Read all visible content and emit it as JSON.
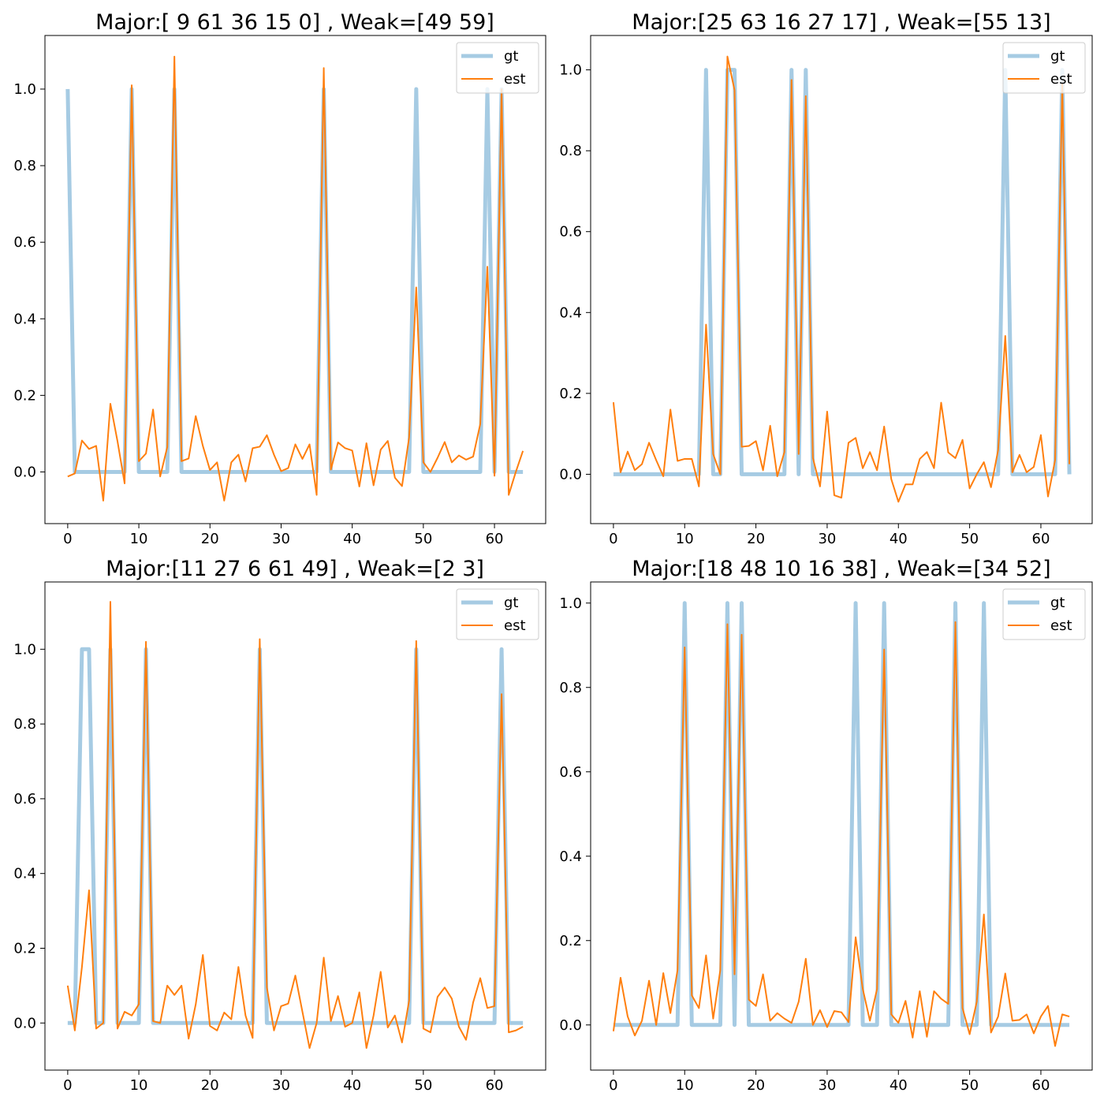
{
  "chart_data": [
    {
      "type": "line",
      "title": "Major:[ 9 61 36 15  0] , Weak=[49 59]",
      "xlabel": "",
      "ylabel": "",
      "xlim": [
        -3.2,
        67.2
      ],
      "ylim": [
        -0.135,
        1.14
      ],
      "xticks": [
        0,
        10,
        20,
        30,
        40,
        50,
        60
      ],
      "xtick_labels": [
        "0",
        "10",
        "20",
        "30",
        "40",
        "50",
        "60"
      ],
      "yticks": [
        0.0,
        0.2,
        0.4,
        0.6,
        0.8,
        1.0
      ],
      "ytick_labels": [
        "0.0",
        "0.2",
        "0.4",
        "0.6",
        "0.8",
        "1.0"
      ],
      "legend": "top-right",
      "x": [
        0,
        1,
        2,
        3,
        4,
        5,
        6,
        7,
        8,
        9,
        10,
        11,
        12,
        13,
        14,
        15,
        16,
        17,
        18,
        19,
        20,
        21,
        22,
        23,
        24,
        25,
        26,
        27,
        28,
        29,
        30,
        31,
        32,
        33,
        34,
        35,
        36,
        37,
        38,
        39,
        40,
        41,
        42,
        43,
        44,
        45,
        46,
        47,
        48,
        49,
        50,
        51,
        52,
        53,
        54,
        55,
        56,
        57,
        58,
        59,
        60,
        61,
        62,
        63,
        64
      ],
      "series": [
        {
          "name": "gt",
          "color": "#a6cbe3",
          "values": [
            1,
            0,
            0,
            0,
            0,
            0,
            0,
            0,
            0,
            1,
            0,
            0,
            0,
            0,
            0,
            1,
            0,
            0,
            0,
            0,
            0,
            0,
            0,
            0,
            0,
            0,
            0,
            0,
            0,
            0,
            0,
            0,
            0,
            0,
            0,
            0,
            1,
            0,
            0,
            0,
            0,
            0,
            0,
            0,
            0,
            0,
            0,
            0,
            0,
            1,
            0,
            0,
            0,
            0,
            0,
            0,
            0,
            0,
            0,
            1,
            0,
            1,
            0,
            0,
            0
          ]
        },
        {
          "name": "est",
          "color": "#ff7f0e",
          "values": [
            -0.012,
            -0.004,
            0.082,
            0.06,
            0.068,
            -0.075,
            0.178,
            0.08,
            -0.03,
            1.01,
            0.028,
            0.048,
            0.163,
            -0.012,
            0.065,
            1.085,
            0.028,
            0.035,
            0.146,
            0.068,
            0.005,
            0.025,
            -0.075,
            0.025,
            0.045,
            -0.025,
            0.062,
            0.066,
            0.096,
            0.045,
            0.002,
            0.01,
            0.072,
            0.034,
            0.072,
            -0.06,
            1.055,
            0.006,
            0.077,
            0.062,
            0.056,
            -0.038,
            0.075,
            -0.035,
            0.058,
            0.081,
            -0.015,
            -0.037,
            0.09,
            0.482,
            0.025,
            0.0,
            0.037,
            0.078,
            0.025,
            0.043,
            0.032,
            0.04,
            0.125,
            0.536,
            -0.01,
            1.0,
            -0.06,
            0.0,
            0.055
          ]
        }
      ]
    },
    {
      "type": "line",
      "title": "Major:[25 63 16 27 17] , Weak=[55 13]",
      "xlabel": "",
      "ylabel": "",
      "xlim": [
        -3.2,
        67.2
      ],
      "ylim": [
        -0.122,
        1.085
      ],
      "xticks": [
        0,
        10,
        20,
        30,
        40,
        50,
        60
      ],
      "xtick_labels": [
        "0",
        "10",
        "20",
        "30",
        "40",
        "50",
        "60"
      ],
      "yticks": [
        0.0,
        0.2,
        0.4,
        0.6,
        0.8,
        1.0
      ],
      "ytick_labels": [
        "0.0",
        "0.2",
        "0.4",
        "0.6",
        "0.8",
        "1.0"
      ],
      "legend": "top-right",
      "x": [
        0,
        1,
        2,
        3,
        4,
        5,
        6,
        7,
        8,
        9,
        10,
        11,
        12,
        13,
        14,
        15,
        16,
        17,
        18,
        19,
        20,
        21,
        22,
        23,
        24,
        25,
        26,
        27,
        28,
        29,
        30,
        31,
        32,
        33,
        34,
        35,
        36,
        37,
        38,
        39,
        40,
        41,
        42,
        43,
        44,
        45,
        46,
        47,
        48,
        49,
        50,
        51,
        52,
        53,
        54,
        55,
        56,
        57,
        58,
        59,
        60,
        61,
        62,
        63,
        64
      ],
      "series": [
        {
          "name": "gt",
          "color": "#a6cbe3",
          "values": [
            0,
            0,
            0,
            0,
            0,
            0,
            0,
            0,
            0,
            0,
            0,
            0,
            0,
            1,
            0,
            0,
            1,
            1,
            0,
            0,
            0,
            0,
            0,
            0,
            0,
            1,
            0,
            1,
            0,
            0,
            0,
            0,
            0,
            0,
            0,
            0,
            0,
            0,
            0,
            0,
            0,
            0,
            0,
            0,
            0,
            0,
            0,
            0,
            0,
            0,
            0,
            0,
            0,
            0,
            0,
            1,
            0,
            0,
            0,
            0,
            0,
            0,
            0,
            1,
            0
          ]
        },
        {
          "name": "est",
          "color": "#ff7f0e",
          "values": [
            0.178,
            0.005,
            0.056,
            0.01,
            0.025,
            0.078,
            0.035,
            -0.005,
            0.16,
            0.033,
            0.038,
            0.038,
            -0.03,
            0.37,
            0.05,
            0.0,
            1.033,
            0.95,
            0.068,
            0.07,
            0.082,
            0.01,
            0.12,
            -0.005,
            0.055,
            0.975,
            0.05,
            0.935,
            0.04,
            -0.03,
            0.155,
            -0.052,
            -0.058,
            0.078,
            0.09,
            0.015,
            0.055,
            0.01,
            0.118,
            -0.012,
            -0.068,
            -0.025,
            -0.025,
            0.038,
            0.055,
            0.015,
            0.177,
            0.054,
            0.04,
            0.085,
            -0.035,
            0.0,
            0.03,
            -0.032,
            0.06,
            0.342,
            0.005,
            0.048,
            0.005,
            0.018,
            0.097,
            -0.055,
            0.035,
            0.965,
            0.025
          ]
        }
      ]
    },
    {
      "type": "line",
      "title": "Major:[11 27  6 61 49] , Weak=[2 3]",
      "xlabel": "",
      "ylabel": "",
      "xlim": [
        -3.2,
        67.2
      ],
      "ylim": [
        -0.126,
        1.18
      ],
      "xticks": [
        0,
        10,
        20,
        30,
        40,
        50,
        60
      ],
      "xtick_labels": [
        "0",
        "10",
        "20",
        "30",
        "40",
        "50",
        "60"
      ],
      "yticks": [
        0.0,
        0.2,
        0.4,
        0.6,
        0.8,
        1.0
      ],
      "ytick_labels": [
        "0.0",
        "0.2",
        "0.4",
        "0.6",
        "0.8",
        "1.0"
      ],
      "legend": "top-right",
      "x": [
        0,
        1,
        2,
        3,
        4,
        5,
        6,
        7,
        8,
        9,
        10,
        11,
        12,
        13,
        14,
        15,
        16,
        17,
        18,
        19,
        20,
        21,
        22,
        23,
        24,
        25,
        26,
        27,
        28,
        29,
        30,
        31,
        32,
        33,
        34,
        35,
        36,
        37,
        38,
        39,
        40,
        41,
        42,
        43,
        44,
        45,
        46,
        47,
        48,
        49,
        50,
        51,
        52,
        53,
        54,
        55,
        56,
        57,
        58,
        59,
        60,
        61,
        62,
        63,
        64
      ],
      "series": [
        {
          "name": "gt",
          "color": "#a6cbe3",
          "values": [
            0,
            0,
            1,
            1,
            0,
            0,
            1,
            0,
            0,
            0,
            0,
            1,
            0,
            0,
            0,
            0,
            0,
            0,
            0,
            0,
            0,
            0,
            0,
            0,
            0,
            0,
            0,
            1,
            0,
            0,
            0,
            0,
            0,
            0,
            0,
            0,
            0,
            0,
            0,
            0,
            0,
            0,
            0,
            0,
            0,
            0,
            0,
            0,
            0,
            1,
            0,
            0,
            0,
            0,
            0,
            0,
            0,
            0,
            0,
            0,
            0,
            1,
            0,
            0,
            0
          ]
        },
        {
          "name": "est",
          "color": "#ff7f0e",
          "values": [
            0.1,
            -0.02,
            0.15,
            0.355,
            -0.015,
            0.0,
            1.127,
            -0.015,
            0.03,
            0.02,
            0.05,
            1.02,
            0.005,
            0.0,
            0.1,
            0.075,
            0.1,
            -0.042,
            0.05,
            0.182,
            -0.008,
            -0.02,
            0.028,
            0.01,
            0.15,
            0.02,
            -0.04,
            1.027,
            0.095,
            -0.02,
            0.045,
            0.052,
            0.127,
            0.03,
            -0.067,
            0.0,
            0.175,
            0.005,
            0.072,
            -0.01,
            0.0,
            0.082,
            -0.067,
            0.02,
            0.137,
            -0.012,
            0.02,
            -0.052,
            0.06,
            1.022,
            -0.015,
            -0.025,
            0.07,
            0.095,
            0.065,
            -0.01,
            -0.045,
            0.055,
            0.12,
            0.04,
            0.045,
            0.88,
            -0.025,
            -0.02,
            -0.01
          ]
        }
      ]
    },
    {
      "type": "line",
      "title": "Major:[18 48 10 16 38] , Weak=[34 52]",
      "xlabel": "",
      "ylabel": "",
      "xlim": [
        -3.2,
        67.2
      ],
      "ylim": [
        -0.107,
        1.05
      ],
      "xticks": [
        0,
        10,
        20,
        30,
        40,
        50,
        60
      ],
      "xtick_labels": [
        "0",
        "10",
        "20",
        "30",
        "40",
        "50",
        "60"
      ],
      "yticks": [
        0.0,
        0.2,
        0.4,
        0.6,
        0.8,
        1.0
      ],
      "ytick_labels": [
        "0.0",
        "0.2",
        "0.4",
        "0.6",
        "0.8",
        "1.0"
      ],
      "legend": "top-right",
      "x": [
        0,
        1,
        2,
        3,
        4,
        5,
        6,
        7,
        8,
        9,
        10,
        11,
        12,
        13,
        14,
        15,
        16,
        17,
        18,
        19,
        20,
        21,
        22,
        23,
        24,
        25,
        26,
        27,
        28,
        29,
        30,
        31,
        32,
        33,
        34,
        35,
        36,
        37,
        38,
        39,
        40,
        41,
        42,
        43,
        44,
        45,
        46,
        47,
        48,
        49,
        50,
        51,
        52,
        53,
        54,
        55,
        56,
        57,
        58,
        59,
        60,
        61,
        62,
        63,
        64
      ],
      "series": [
        {
          "name": "gt",
          "color": "#a6cbe3",
          "values": [
            0,
            0,
            0,
            0,
            0,
            0,
            0,
            0,
            0,
            0,
            1,
            0,
            0,
            0,
            0,
            0,
            1,
            0,
            1,
            0,
            0,
            0,
            0,
            0,
            0,
            0,
            0,
            0,
            0,
            0,
            0,
            0,
            0,
            0,
            1,
            0,
            0,
            0,
            1,
            0,
            0,
            0,
            0,
            0,
            0,
            0,
            0,
            0,
            1,
            0,
            0,
            0,
            1,
            0,
            0,
            0,
            0,
            0,
            0,
            0,
            0,
            0,
            0,
            0,
            0
          ]
        },
        {
          "name": "est",
          "color": "#ff7f0e",
          "values": [
            -0.015,
            0.112,
            0.02,
            -0.025,
            0.01,
            0.105,
            0.0,
            0.123,
            0.028,
            0.13,
            0.895,
            0.07,
            0.04,
            0.165,
            0.015,
            0.13,
            0.95,
            0.12,
            0.925,
            0.06,
            0.045,
            0.12,
            0.01,
            0.028,
            0.015,
            0.005,
            0.055,
            0.157,
            0.0,
            0.035,
            -0.005,
            0.033,
            0.03,
            0.007,
            0.208,
            0.085,
            0.01,
            0.085,
            0.89,
            0.025,
            0.005,
            0.057,
            -0.03,
            0.08,
            -0.028,
            0.08,
            0.062,
            0.05,
            0.955,
            0.04,
            -0.022,
            0.055,
            0.262,
            -0.018,
            0.02,
            0.122,
            0.01,
            0.012,
            0.025,
            -0.02,
            0.02,
            0.045,
            -0.05,
            0.025,
            0.02
          ]
        }
      ]
    }
  ]
}
